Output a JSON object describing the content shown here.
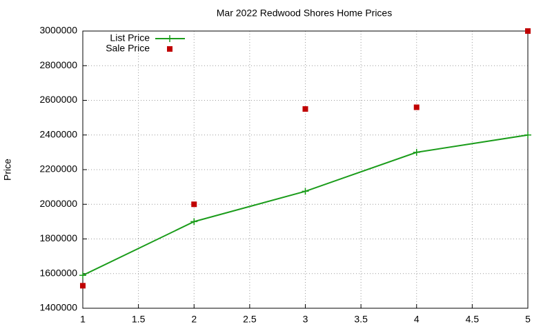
{
  "chart_data": {
    "type": "line",
    "title": "Mar 2022 Redwood Shores Home Prices",
    "ylabel": "Price",
    "x": [
      1,
      2,
      3,
      4,
      5
    ],
    "series": [
      {
        "name": "List Price",
        "color": "#1a9c1a",
        "style": "linespoints",
        "marker": "plus",
        "values": [
          1590000,
          1900000,
          2075000,
          2300000,
          2400000
        ]
      },
      {
        "name": "Sale Price",
        "color": "#c00000",
        "style": "points",
        "marker": "square",
        "values": [
          1530000,
          2000000,
          2550000,
          2560000,
          3000000
        ]
      }
    ],
    "xlim": [
      1,
      5
    ],
    "xticks": [
      1,
      1.5,
      2,
      2.5,
      3,
      3.5,
      4,
      4.5,
      5
    ],
    "ylim": [
      1400000,
      3000000
    ],
    "yticks": [
      1400000,
      1600000,
      1800000,
      2000000,
      2200000,
      2400000,
      2600000,
      2800000,
      3000000
    ],
    "grid": true,
    "legend": "top-left"
  }
}
